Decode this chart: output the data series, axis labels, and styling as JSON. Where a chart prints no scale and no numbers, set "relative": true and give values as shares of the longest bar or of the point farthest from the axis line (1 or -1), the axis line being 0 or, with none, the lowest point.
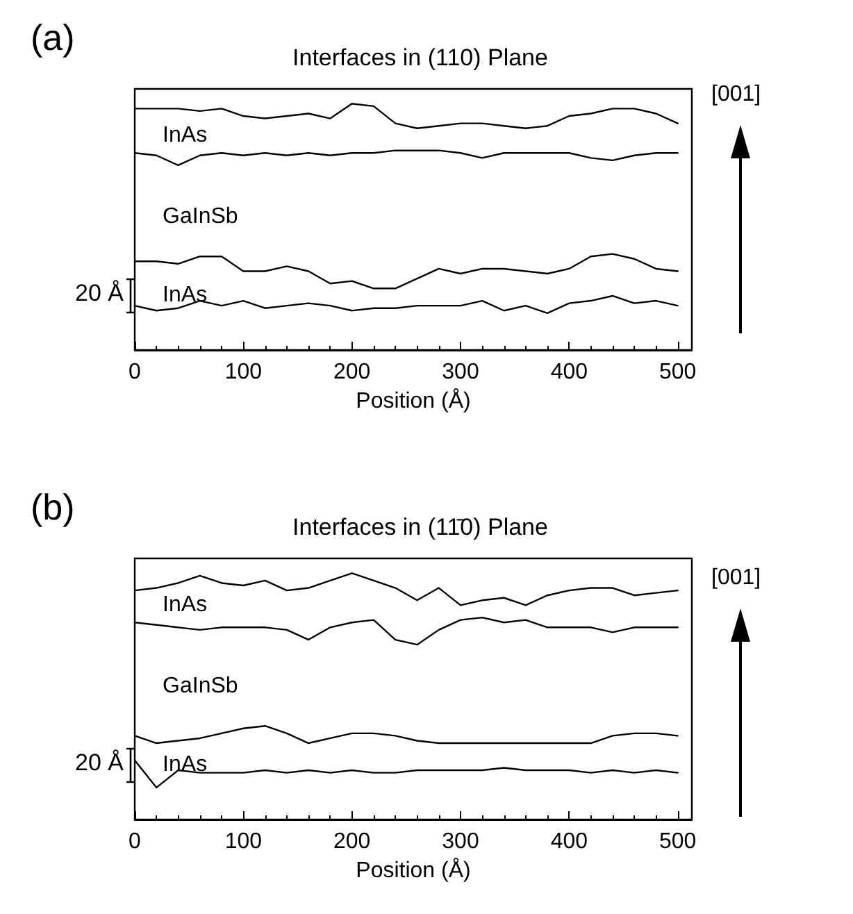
{
  "chart_data": [
    {
      "type": "line",
      "title": "Interfaces in (110) Plane",
      "xlabel": "Position (Å)",
      "relative": true,
      "marker": "none",
      "xlim": [
        0,
        513
      ],
      "xticks": [
        0,
        100,
        200,
        300,
        400,
        500
      ],
      "x": [
        0,
        20,
        40,
        60,
        80,
        100,
        120,
        140,
        160,
        180,
        200,
        220,
        240,
        260,
        280,
        300,
        320,
        340,
        360,
        380,
        400,
        420,
        440,
        460,
        480,
        500
      ],
      "annotations": [
        "(a)",
        "InAs",
        "GaInSb",
        "InAs",
        "20 Å",
        "[001]"
      ],
      "series": [
        {
          "color": "#000000",
          "values": [
            0.98,
            0.98,
            0.98,
            0.97,
            0.98,
            0.95,
            0.94,
            0.95,
            0.96,
            0.94,
            1,
            0.99,
            0.92,
            0.9,
            0.91,
            0.92,
            0.92,
            0.91,
            0.9,
            0.91,
            0.95,
            0.96,
            0.98,
            0.98,
            0.96,
            0.92
          ]
        },
        {
          "color": "#000000",
          "values": [
            0.8,
            0.79,
            0.75,
            0.79,
            0.8,
            0.79,
            0.8,
            0.79,
            0.8,
            0.79,
            0.8,
            0.8,
            0.81,
            0.81,
            0.81,
            0.8,
            0.78,
            0.8,
            0.8,
            0.8,
            0.8,
            0.78,
            0.77,
            0.79,
            0.8,
            0.8
          ]
        },
        {
          "color": "#000000",
          "values": [
            0.36,
            0.36,
            0.35,
            0.38,
            0.38,
            0.32,
            0.32,
            0.34,
            0.32,
            0.27,
            0.28,
            0.25,
            0.25,
            0.29,
            0.33,
            0.31,
            0.33,
            0.33,
            0.32,
            0.31,
            0.33,
            0.38,
            0.39,
            0.37,
            0.33,
            0.32
          ]
        },
        {
          "color": "#000000",
          "values": [
            0.18,
            0.16,
            0.17,
            0.2,
            0.18,
            0.2,
            0.17,
            0.18,
            0.19,
            0.18,
            0.16,
            0.17,
            0.17,
            0.18,
            0.18,
            0.18,
            0.2,
            0.16,
            0.18,
            0.15,
            0.19,
            0.2,
            0.22,
            0.19,
            0.2,
            0.18
          ]
        }
      ]
    },
    {
      "type": "line",
      "title": "Interfaces in (11̄0) Plane",
      "xlabel": "Position (Å)",
      "relative": true,
      "marker": "none",
      "xlim": [
        0,
        513
      ],
      "xticks": [
        0,
        100,
        200,
        300,
        400,
        500
      ],
      "x": [
        0,
        20,
        40,
        60,
        80,
        100,
        120,
        140,
        160,
        180,
        200,
        220,
        240,
        260,
        280,
        300,
        320,
        340,
        360,
        380,
        400,
        420,
        440,
        460,
        480,
        500
      ],
      "annotations": [
        "(b)",
        "InAs",
        "GaInSb",
        "InAs",
        "20 Å",
        "[001]"
      ],
      "series": [
        {
          "color": "#000000",
          "values": [
            0.93,
            0.94,
            0.96,
            0.99,
            0.96,
            0.95,
            0.97,
            0.93,
            0.94,
            0.97,
            1,
            0.97,
            0.94,
            0.89,
            0.94,
            0.87,
            0.89,
            0.9,
            0.87,
            0.91,
            0.93,
            0.94,
            0.94,
            0.91,
            0.92,
            0.93
          ]
        },
        {
          "color": "#000000",
          "values": [
            0.8,
            0.79,
            0.78,
            0.77,
            0.78,
            0.78,
            0.78,
            0.77,
            0.73,
            0.78,
            0.8,
            0.81,
            0.73,
            0.71,
            0.77,
            0.81,
            0.82,
            0.8,
            0.81,
            0.78,
            0.78,
            0.78,
            0.76,
            0.78,
            0.78,
            0.78
          ]
        },
        {
          "color": "#000000",
          "values": [
            0.34,
            0.31,
            0.32,
            0.33,
            0.35,
            0.37,
            0.38,
            0.35,
            0.31,
            0.33,
            0.35,
            0.35,
            0.34,
            0.32,
            0.31,
            0.31,
            0.31,
            0.31,
            0.31,
            0.31,
            0.31,
            0.31,
            0.34,
            0.35,
            0.35,
            0.34
          ]
        },
        {
          "color": "#000000",
          "values": [
            0.24,
            0.13,
            0.2,
            0.19,
            0.19,
            0.19,
            0.2,
            0.19,
            0.2,
            0.19,
            0.2,
            0.19,
            0.19,
            0.2,
            0.2,
            0.2,
            0.2,
            0.21,
            0.2,
            0.2,
            0.2,
            0.19,
            0.2,
            0.19,
            0.2,
            0.19
          ]
        }
      ]
    }
  ]
}
